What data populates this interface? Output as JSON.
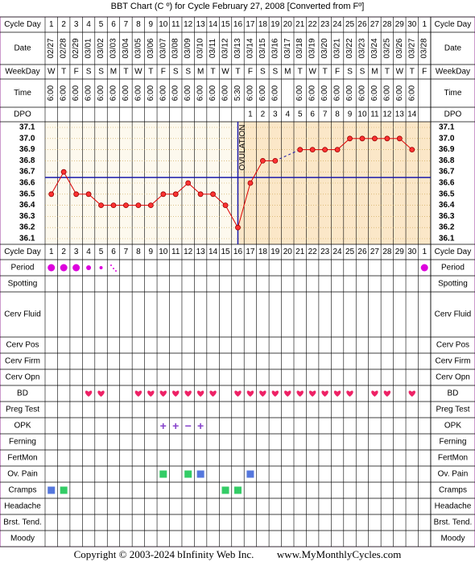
{
  "footer": {
    "copyright": "Copyright © 2003-2024 bInfinity Web Inc.",
    "site": "www.MyMonthlyCycles.com"
  },
  "colors": {
    "border": "#cc99cc",
    "label_bg": "#ffffff",
    "pre_ovulation_bg": "#fdf9ee",
    "post_ovulation_bg": "#fbe7c8",
    "grid_dots": "#c9a24a",
    "temp_line": "#dd0000",
    "temp_point_fill": "#ff3333",
    "coverline": "#1a1aaa",
    "ovulation_line": "#1a1aaa",
    "period": "#dd00dd",
    "bd_heart": "#ee2266",
    "opk": "#8844cc",
    "green_box": "#33cc66",
    "blue_box": "#5577dd"
  },
  "rows": {
    "cycle_day": "Cycle Day",
    "date": "Date",
    "weekday": "WeekDay",
    "time": "Time",
    "dpo": "DPO",
    "period": "Period",
    "spotting": "Spotting",
    "cerv_fluid": "Cerv Fluid",
    "cerv_pos": "Cerv Pos",
    "cerv_firm": "Cerv Firm",
    "cerv_opn": "Cerv Opn",
    "bd": "BD",
    "preg_test": "Preg Test",
    "opk": "OPK",
    "ferning": "Ferning",
    "fertmon": "FertMon",
    "ov_pain": "Ov. Pain",
    "cramps": "Cramps",
    "headache": "Headache",
    "brst_tend": "Brst. Tend.",
    "moody": "Moody"
  },
  "chart_data": {
    "type": "line",
    "title": "BBT Chart (C º) for Cycle February 27, 2008  [Converted from Fº]",
    "cycle_days": [
      1,
      2,
      3,
      4,
      5,
      6,
      7,
      8,
      9,
      10,
      11,
      12,
      13,
      14,
      15,
      16,
      17,
      18,
      19,
      20,
      21,
      22,
      23,
      24,
      25,
      26,
      27,
      28,
      29,
      30,
      1
    ],
    "dates": [
      "02/27",
      "02/28",
      "02/29",
      "03/01",
      "03/02",
      "03/03",
      "03/04",
      "03/05",
      "03/06",
      "03/07",
      "03/08",
      "03/09",
      "03/10",
      "03/11",
      "03/12",
      "03/13",
      "03/14",
      "03/15",
      "03/16",
      "03/17",
      "03/18",
      "03/19",
      "03/20",
      "03/21",
      "03/22",
      "03/23",
      "03/24",
      "03/25",
      "03/26",
      "03/27",
      "03/28"
    ],
    "weekdays": [
      "W",
      "T",
      "F",
      "S",
      "S",
      "M",
      "T",
      "W",
      "T",
      "F",
      "S",
      "S",
      "M",
      "T",
      "W",
      "T",
      "F",
      "S",
      "S",
      "M",
      "T",
      "W",
      "T",
      "F",
      "S",
      "S",
      "M",
      "T",
      "W",
      "T",
      "F"
    ],
    "times": [
      "6:00",
      "6:00",
      "6:00",
      "6:00",
      "6:00",
      "6:00",
      "6:00",
      "6:00",
      "6:00",
      "6:00",
      "6:00",
      "6:00",
      "6:00",
      "6:00",
      "6:00",
      "5:30",
      "6:00",
      "6:00",
      "6:00",
      "",
      "6:00",
      "6:00",
      "6:00",
      "6:00",
      "6:00",
      "6:00",
      "6:00",
      "6:00",
      "6:00",
      "6:00",
      ""
    ],
    "dpo": [
      "",
      "",
      "",
      "",
      "",
      "",
      "",
      "",
      "",
      "",
      "",
      "",
      "",
      "",
      "",
      "",
      "1",
      "2",
      "3",
      "4",
      "5",
      "6",
      "7",
      "8",
      "9",
      "10",
      "11",
      "12",
      "13",
      "14",
      ""
    ],
    "yticks": [
      "37.1",
      "37.0",
      "36.9",
      "36.8",
      "36.7",
      "36.6",
      "36.5",
      "36.4",
      "36.3",
      "36.2",
      "36.1"
    ],
    "ylim": [
      36.1,
      37.1
    ],
    "temps": [
      36.5,
      36.7,
      36.5,
      36.5,
      36.4,
      36.4,
      36.4,
      36.4,
      36.4,
      36.5,
      36.5,
      36.6,
      36.5,
      36.5,
      36.4,
      36.2,
      36.6,
      36.8,
      36.8,
      null,
      36.9,
      36.9,
      36.9,
      36.9,
      37.0,
      37.0,
      37.0,
      37.0,
      37.0,
      36.9,
      null
    ],
    "coverline": 36.65,
    "ovulation_day": 16,
    "ovulation_label": "OVULATION",
    "period": [
      "large",
      "large",
      "large",
      "medium",
      "small",
      "spotting",
      null,
      null,
      null,
      null,
      null,
      null,
      null,
      null,
      null,
      null,
      null,
      null,
      null,
      null,
      null,
      null,
      null,
      null,
      null,
      null,
      null,
      null,
      null,
      null,
      "large"
    ],
    "bd_days": [
      4,
      5,
      8,
      9,
      10,
      11,
      12,
      13,
      14,
      16,
      17,
      18,
      19,
      20,
      21,
      22,
      23,
      24,
      25,
      27,
      28,
      30
    ],
    "opk": [
      {
        "day": 10,
        "symbol": "+"
      },
      {
        "day": 11,
        "symbol": "+"
      },
      {
        "day": 12,
        "symbol": "−"
      },
      {
        "day": 13,
        "symbol": "+"
      }
    ],
    "ov_pain": [
      {
        "day": 10,
        "color": "green"
      },
      {
        "day": 12,
        "color": "green"
      },
      {
        "day": 13,
        "color": "blue"
      },
      {
        "day": 17,
        "color": "blue"
      }
    ],
    "cramps": [
      {
        "day": 1,
        "color": "blue"
      },
      {
        "day": 2,
        "color": "green"
      },
      {
        "day": 15,
        "color": "green"
      },
      {
        "day": 16,
        "color": "green"
      }
    ]
  }
}
